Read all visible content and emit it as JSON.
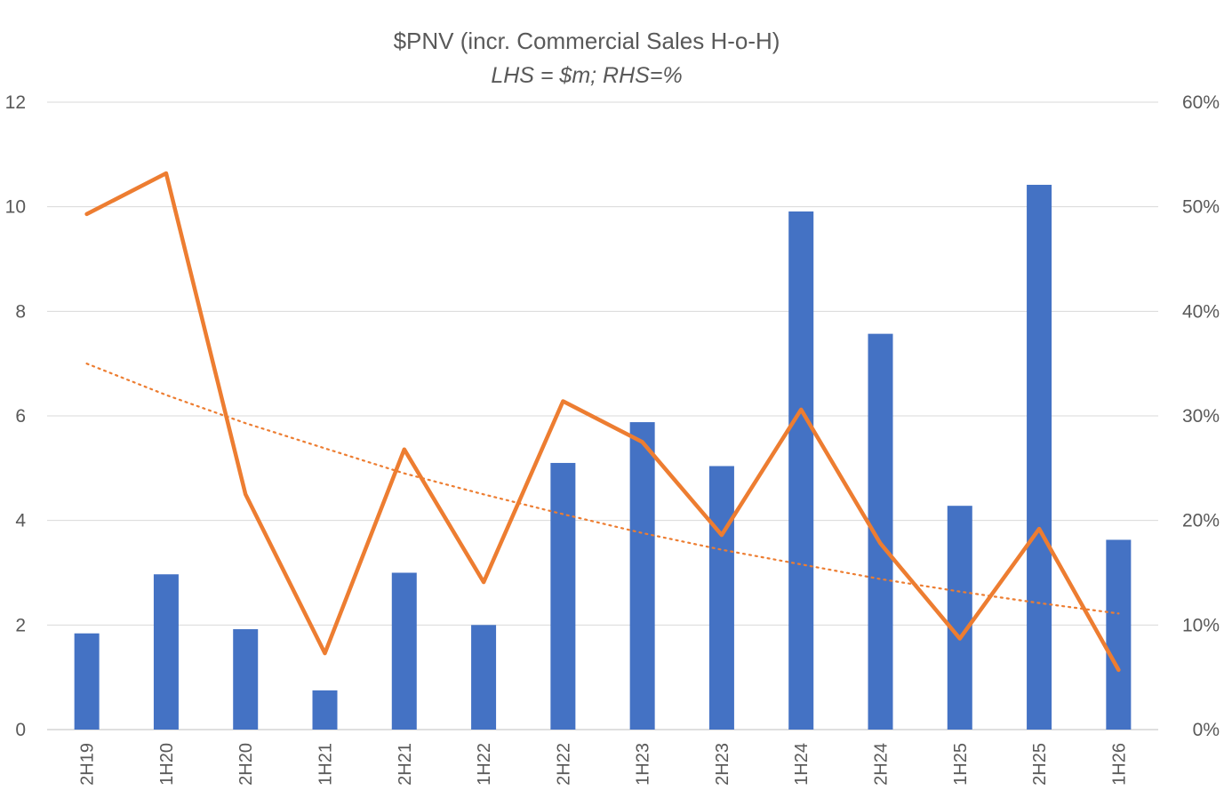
{
  "chart_data": {
    "type": "bar",
    "title": "$PNV (incr. Commercial Sales H-o-H)",
    "subtitle": "LHS = $m; RHS=%",
    "categories": [
      "2H19",
      "1H20",
      "2H20",
      "1H21",
      "2H21",
      "1H22",
      "2H22",
      "1H23",
      "2H23",
      "1H24",
      "2H24",
      "1H25",
      "2H25",
      "1H26"
    ],
    "series": [
      {
        "name": "Incremental Commercial Sales ($m)",
        "axis": "left",
        "type": "bar",
        "color": "#4472C4",
        "values": [
          1.84,
          2.97,
          1.92,
          0.75,
          3.0,
          2.0,
          5.1,
          5.88,
          5.04,
          9.91,
          7.57,
          4.28,
          10.42,
          3.63
        ]
      },
      {
        "name": "H-o-H growth (%)",
        "axis": "right",
        "type": "line",
        "color": "#ED7D31",
        "values": [
          49.3,
          53.2,
          22.5,
          7.3,
          26.8,
          14.1,
          31.4,
          27.5,
          18.6,
          30.6,
          17.8,
          8.7,
          19.2,
          5.7
        ]
      },
      {
        "name": "Trend (%)",
        "axis": "right",
        "type": "line",
        "style": "dotted",
        "color": "#ED7D31",
        "values": [
          35.0,
          32.0,
          29.3,
          26.9,
          24.5,
          22.5,
          20.6,
          18.8,
          17.2,
          15.8,
          14.4,
          13.2,
          12.1,
          11.1
        ]
      }
    ],
    "y_left": {
      "ylim": [
        0,
        12
      ],
      "ticks": [
        "0",
        "2",
        "4",
        "6",
        "8",
        "10",
        "12"
      ]
    },
    "y_right": {
      "ylim": [
        0,
        60
      ],
      "ticks": [
        "0%",
        "10%",
        "20%",
        "30%",
        "40%",
        "50%",
        "60%"
      ]
    },
    "grid": true,
    "legend": "none"
  }
}
